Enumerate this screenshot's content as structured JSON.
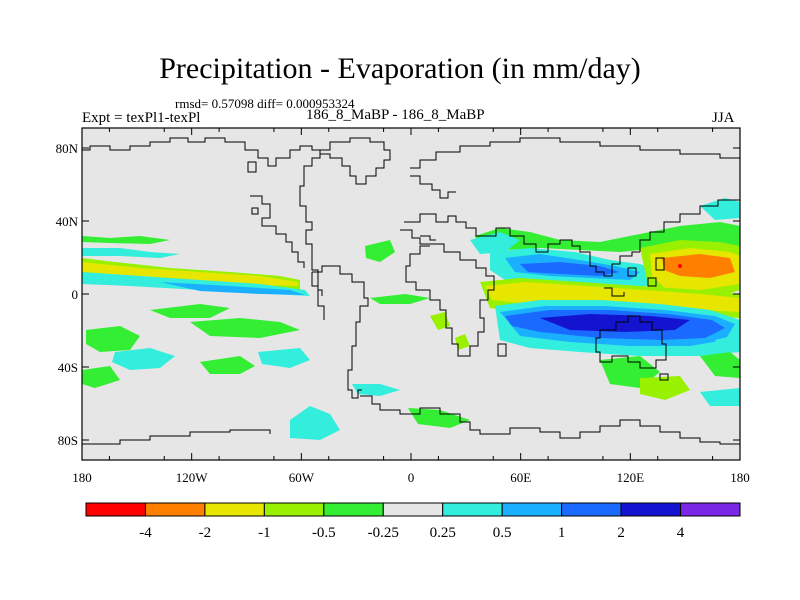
{
  "title": "Precipitation - Evaporation (in mm/day)",
  "stats": "rmsd= 0.57098 diff= 0.000953324",
  "expt": "Expt = texPl1-texPl",
  "case": "186_8_MaBP - 186_8_MaBP",
  "season": "JJA",
  "lat_ticks": [
    "80N",
    "40N",
    "0",
    "40S",
    "80S"
  ],
  "lon_ticks": [
    "180",
    "120W",
    "60W",
    "0",
    "60E",
    "120E",
    "180"
  ],
  "colorbar": {
    "colors": [
      "#ff0000",
      "#ff8000",
      "#e6e600",
      "#99f000",
      "#33ee33",
      "#e6e6e6",
      "#33eedd",
      "#1ab0ff",
      "#1a6aff",
      "#1414d0",
      "#7a28e6"
    ],
    "labels": [
      "-4",
      "-2",
      "-1",
      "-0.5",
      "-0.25",
      "0.25",
      "0.5",
      "1",
      "2",
      "4"
    ]
  }
}
